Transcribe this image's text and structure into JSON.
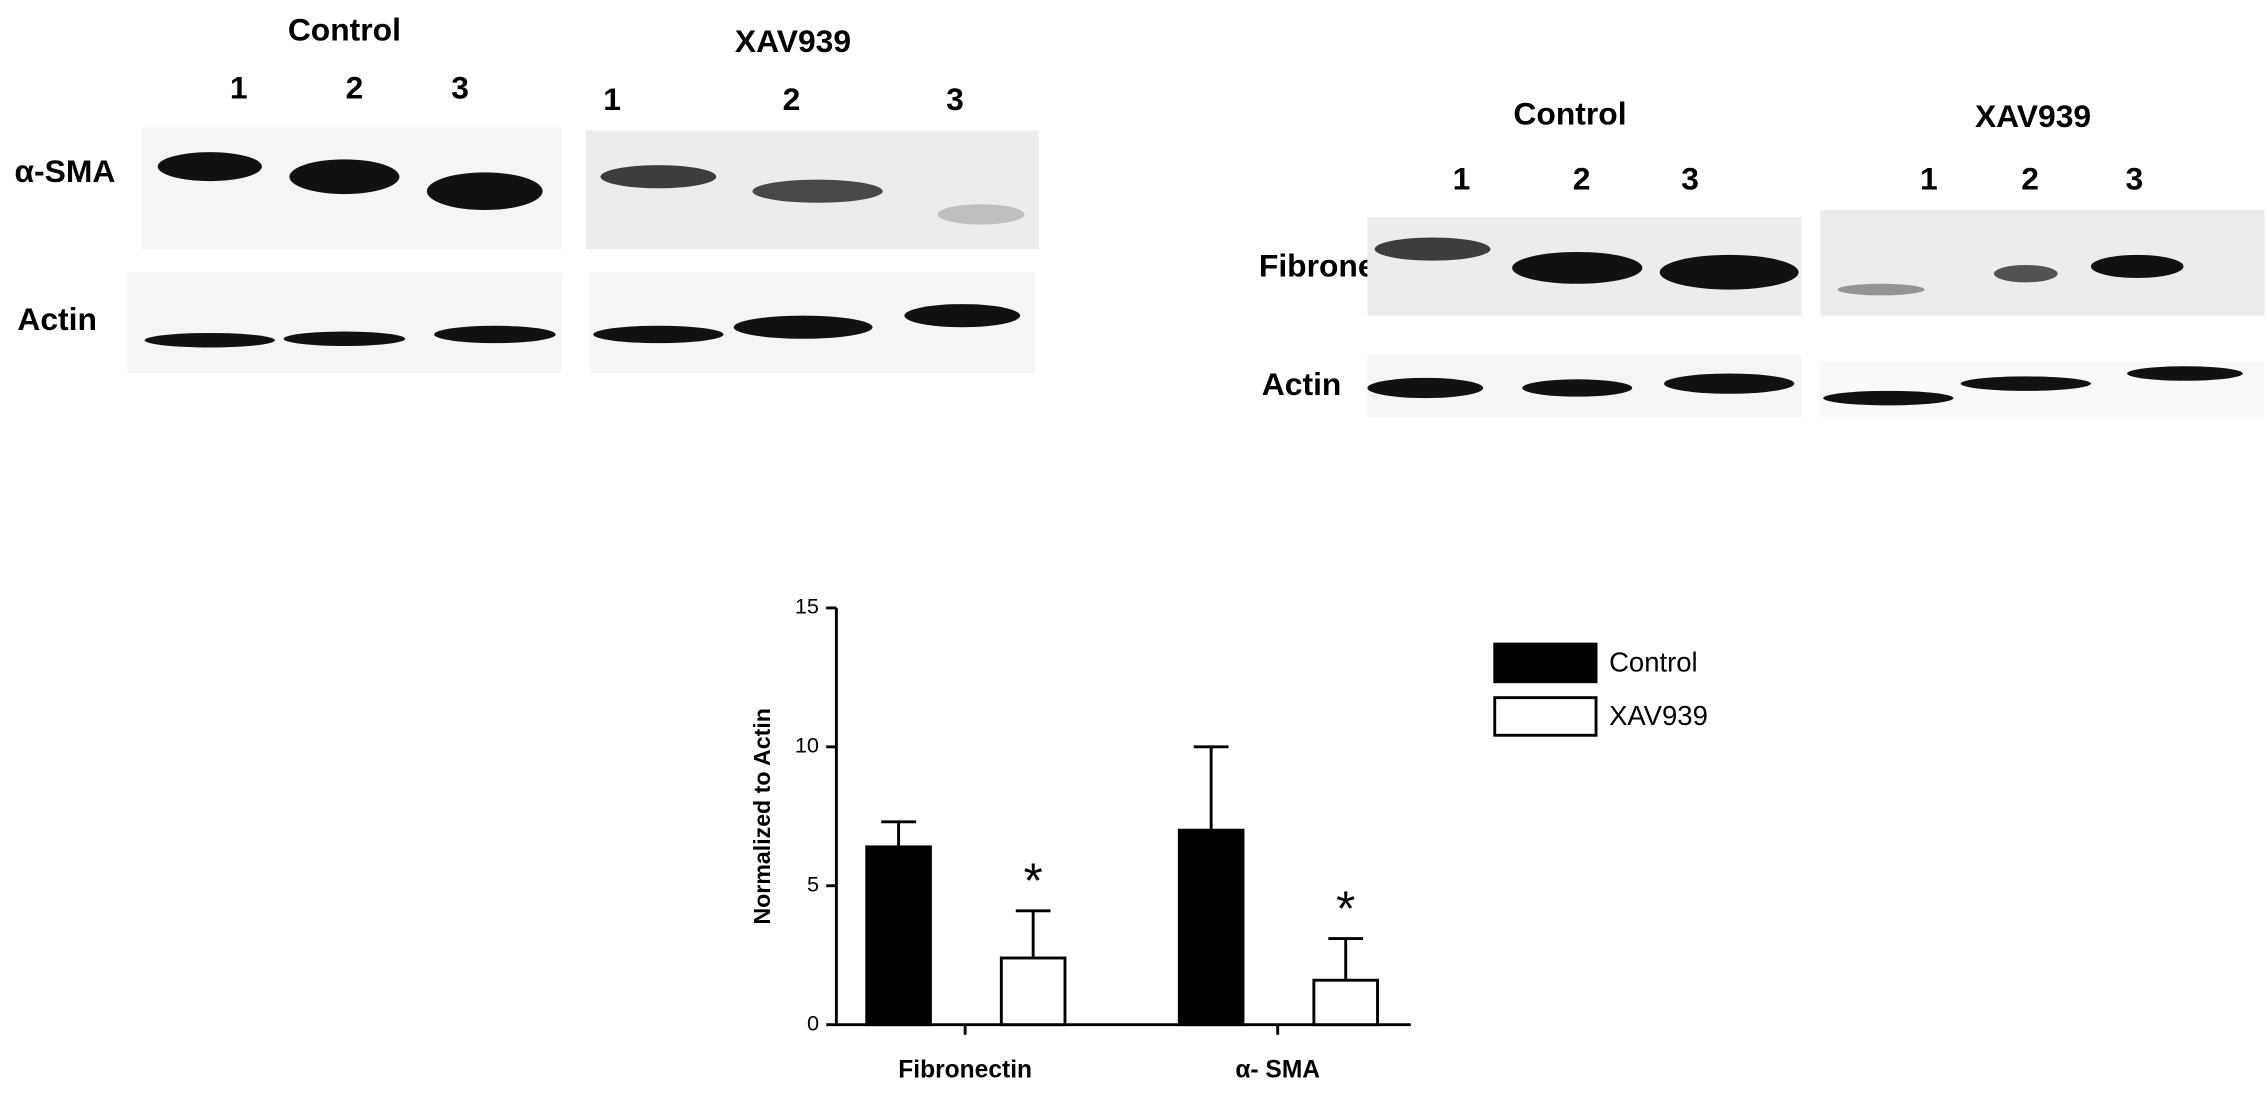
{
  "blots": {
    "left": {
      "groups": [
        "Control",
        "XAV939"
      ],
      "lanes": [
        [
          "1",
          "2",
          "3"
        ],
        [
          "1",
          "2",
          "3"
        ]
      ],
      "rows": [
        "α-SMA",
        "Actin"
      ]
    },
    "right": {
      "groups": [
        "Control",
        "XAV939"
      ],
      "lanes": [
        [
          "1",
          "2",
          "3"
        ],
        [
          "1",
          "2",
          "3"
        ]
      ],
      "rows": [
        "Fibronectin",
        "Actin"
      ]
    }
  },
  "chart_data": {
    "type": "bar",
    "ylabel": "Normalized to Actin",
    "categories": [
      "Fibronectin",
      "α- SMA"
    ],
    "series": [
      {
        "name": "Control",
        "color": "#000000",
        "values": [
          6.4,
          7.0
        ],
        "errors": [
          0.9,
          3.0
        ]
      },
      {
        "name": "XAV939",
        "color": "#ffffff",
        "values": [
          2.4,
          1.6
        ],
        "errors": [
          1.7,
          1.5
        ],
        "annotations": [
          "*",
          "*"
        ]
      }
    ],
    "ylim": [
      0,
      15
    ],
    "yticks": [
      0,
      5,
      10,
      15
    ]
  }
}
